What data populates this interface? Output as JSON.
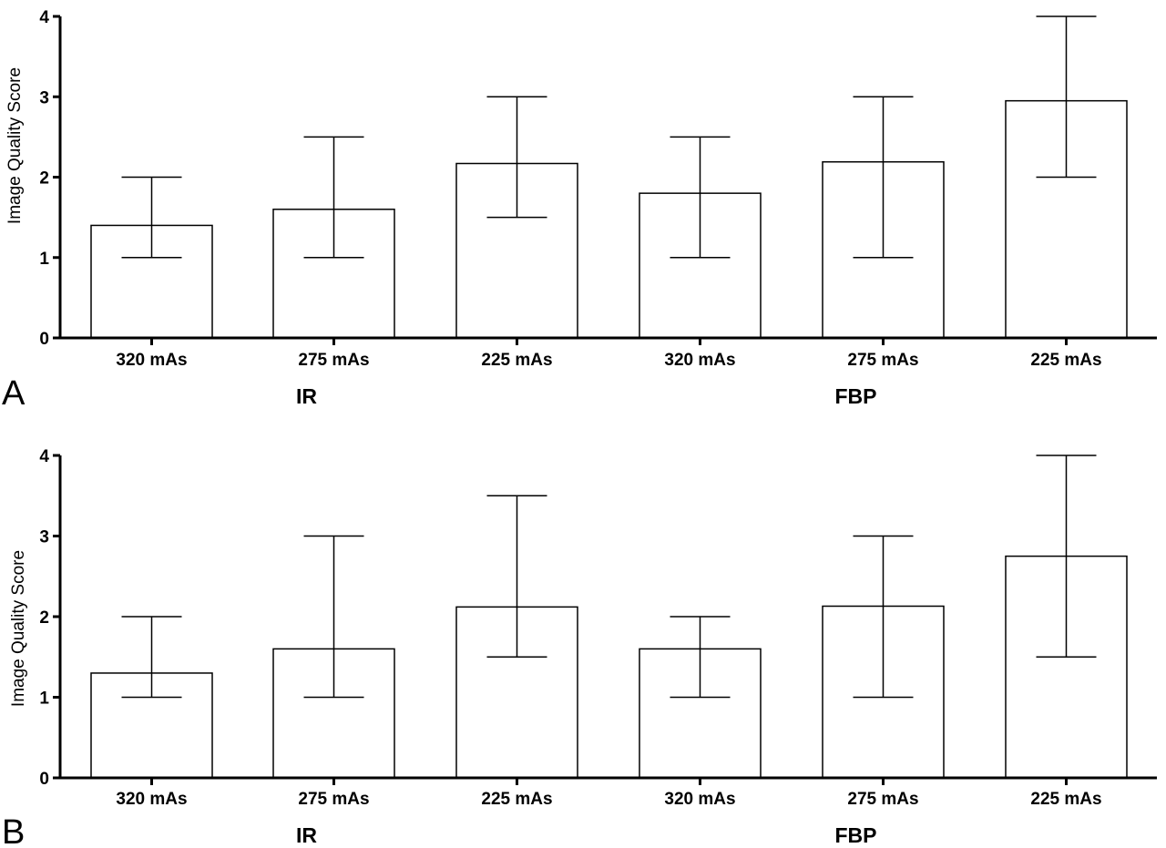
{
  "chart_data": [
    {
      "type": "bar",
      "panel_label": "A",
      "ylabel": "Image Quality Score",
      "ylim": [
        0,
        4
      ],
      "yticks": [
        "0",
        "1",
        "2",
        "3",
        "4"
      ],
      "categories": [
        "320 mAs",
        "275 mAs",
        "225 mAs",
        "320 mAs",
        "275 mAs",
        "225 mAs"
      ],
      "groups": [
        {
          "label": "IR",
          "category_indices": [
            0,
            1,
            2
          ]
        },
        {
          "label": "FBP",
          "category_indices": [
            3,
            4,
            5
          ]
        }
      ],
      "values": [
        1.4,
        1.6,
        2.17,
        1.8,
        2.19,
        2.95
      ],
      "error_low": [
        1.0,
        1.0,
        1.5,
        1.0,
        1.0,
        2.0
      ],
      "error_high": [
        2.0,
        2.5,
        3.0,
        2.5,
        3.0,
        4.0
      ],
      "grid": false
    },
    {
      "type": "bar",
      "panel_label": "B",
      "ylabel": "Image Quality Score",
      "ylim": [
        0,
        4
      ],
      "yticks": [
        "0",
        "1",
        "2",
        "3",
        "4"
      ],
      "categories": [
        "320 mAs",
        "275 mAs",
        "225 mAs",
        "320 mAs",
        "275 mAs",
        "225 mAs"
      ],
      "groups": [
        {
          "label": "IR",
          "category_indices": [
            0,
            1,
            2
          ]
        },
        {
          "label": "FBP",
          "category_indices": [
            3,
            4,
            5
          ]
        }
      ],
      "values": [
        1.3,
        1.6,
        2.12,
        1.6,
        2.13,
        2.75
      ],
      "error_low": [
        1.0,
        1.0,
        1.5,
        1.0,
        1.0,
        1.5
      ],
      "error_high": [
        2.0,
        3.0,
        3.5,
        2.0,
        3.0,
        4.0
      ],
      "grid": false
    }
  ]
}
